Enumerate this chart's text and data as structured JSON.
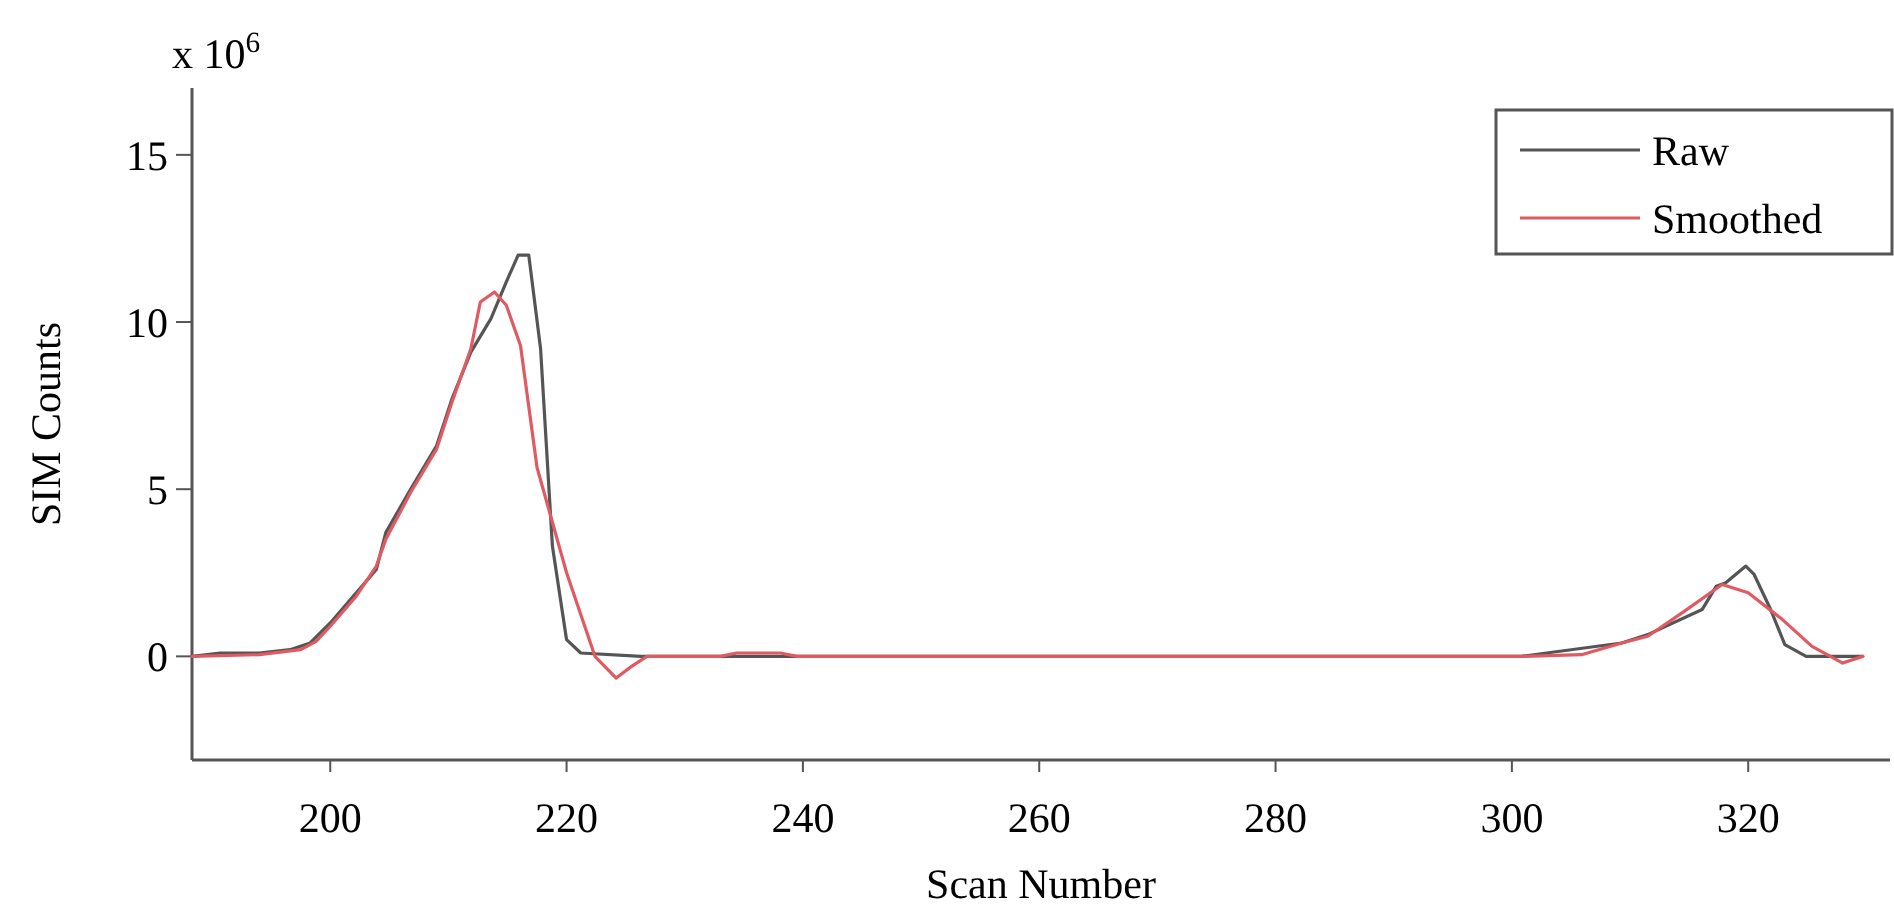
{
  "chart_data": {
    "type": "line",
    "xlabel": "Scan Number",
    "ylabel": "SIM Counts",
    "annotations": [
      "x 10$^{6}$"
    ],
    "xlim": [
      188.3,
      332
    ],
    "xticks": [
      200,
      220,
      240,
      260,
      280,
      300,
      320
    ],
    "ylim": [
      -3.1,
      17
    ],
    "yticks": [
      0,
      5,
      10,
      15
    ],
    "legend": "top right",
    "grid": false,
    "marker": "none",
    "line_style": "solid",
    "series": [
      {
        "name": "Raw",
        "color": "#555555",
        "x": [
          188.3,
          190.7,
          194,
          196.6,
          198.3,
          200,
          202.2,
          203.9,
          204.7,
          206.8,
          209,
          210.3,
          211.9,
          213.6,
          214.9,
          215.9,
          216.8,
          217.8,
          218.8,
          220,
          221.2,
          226.3,
          300.8,
          309.3,
          311.5,
          316.1,
          317.3,
          318.1,
          319.8,
          320.5,
          321.9,
          323.1,
          324.9,
          328.8,
          329.7
        ],
        "values": [
          0,
          0.1,
          0.1,
          0.2,
          0.4,
          1.0,
          1.9,
          2.6,
          3.7,
          5.0,
          6.3,
          7.7,
          9.1,
          10.1,
          11.2,
          12.0,
          12.0,
          9.2,
          3.3,
          0.5,
          0.1,
          0,
          0,
          0.4,
          0.65,
          1.4,
          2.1,
          2.2,
          2.7,
          2.45,
          1.4,
          0.35,
          0,
          0,
          0
        ]
      },
      {
        "name": "Smoothed",
        "color": "#e05a62",
        "x": [
          188.3,
          194,
          197.5,
          198.8,
          200,
          202.2,
          203.9,
          204.7,
          206.8,
          209,
          210.3,
          211.9,
          212.7,
          213.9,
          214.9,
          216.1,
          217.5,
          220,
          222.4,
          224.2,
          225.5,
          226.8,
          233,
          234.4,
          238.1,
          239.5,
          300.8,
          305.9,
          309.3,
          311.5,
          314.4,
          317.8,
          320,
          322.9,
          325.4,
          328,
          329.7
        ],
        "values": [
          0,
          0.05,
          0.2,
          0.45,
          0.9,
          1.8,
          2.7,
          3.5,
          4.9,
          6.2,
          7.6,
          9.2,
          10.6,
          10.9,
          10.5,
          9.3,
          5.65,
          2.5,
          0,
          -0.65,
          -0.3,
          0,
          0,
          0.1,
          0.1,
          0,
          0,
          0.05,
          0.4,
          0.6,
          1.3,
          2.15,
          1.9,
          1.1,
          0.3,
          -0.2,
          0
        ]
      }
    ]
  }
}
